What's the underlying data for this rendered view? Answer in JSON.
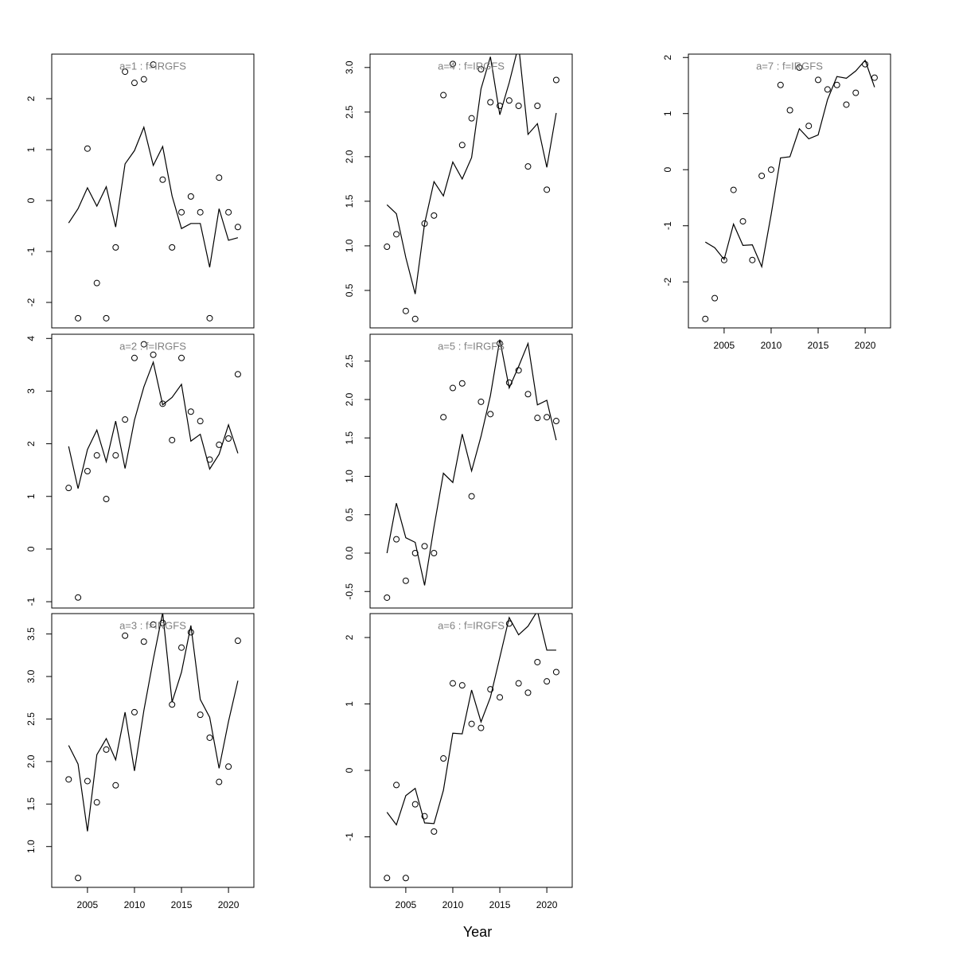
{
  "chart_data": [
    {
      "type": "scatter-line",
      "title": "a=1 : f=IRGFS",
      "x": [
        2003,
        2004,
        2005,
        2006,
        2007,
        2008,
        2009,
        2010,
        2011,
        2012,
        2013,
        2014,
        2015,
        2016,
        2017,
        2018,
        2019,
        2020,
        2021
      ],
      "xlim": [
        2001.2,
        2022.7
      ],
      "ylim": [
        -2.5,
        2.875
      ],
      "yticks": [
        -2,
        -1,
        0,
        1,
        2
      ],
      "series": [
        {
          "style": "points",
          "color": "#000000",
          "values": [
            null,
            -2.31,
            1.02,
            -1.62,
            -2.31,
            -0.92,
            2.53,
            2.31,
            2.38,
            2.67,
            0.41,
            -0.92,
            -0.23,
            0.08,
            -0.23,
            -2.31,
            0.45,
            -0.23,
            -0.52
          ]
        },
        {
          "style": "line",
          "color": "#000000",
          "values": [
            -0.44,
            -0.16,
            0.25,
            -0.11,
            0.27,
            -0.52,
            0.72,
            0.98,
            1.44,
            0.69,
            1.06,
            0.09,
            -0.55,
            -0.45,
            -0.45,
            -1.31,
            -0.16,
            -0.78,
            -0.73
          ]
        }
      ]
    },
    {
      "type": "scatter-line",
      "title": "a=2 : f=IRGFS",
      "x": [
        2003,
        2004,
        2005,
        2006,
        2007,
        2008,
        2009,
        2010,
        2011,
        2012,
        2013,
        2014,
        2015,
        2016,
        2017,
        2018,
        2019,
        2020,
        2021
      ],
      "xlim": [
        2001.2,
        2022.7
      ],
      "ylim": [
        -1.12,
        4.08
      ],
      "yticks": [
        -1,
        0,
        1,
        2,
        3,
        4
      ],
      "series": [
        {
          "style": "points",
          "color": "#000000",
          "values": [
            1.16,
            -0.92,
            1.48,
            1.78,
            0.95,
            1.78,
            2.46,
            3.63,
            3.89,
            3.69,
            2.76,
            2.07,
            3.63,
            2.61,
            2.43,
            1.7,
            1.98,
            2.1,
            3.32
          ]
        },
        {
          "style": "line",
          "color": "#000000",
          "values": [
            1.95,
            1.15,
            1.89,
            2.26,
            1.66,
            2.43,
            1.53,
            2.45,
            3.08,
            3.55,
            2.74,
            2.88,
            3.13,
            2.05,
            2.18,
            1.52,
            1.8,
            2.36,
            1.82
          ]
        }
      ]
    },
    {
      "type": "scatter-line",
      "title": "a=3 : f=IRGFS",
      "x": [
        2003,
        2004,
        2005,
        2006,
        2007,
        2008,
        2009,
        2010,
        2011,
        2012,
        2013,
        2014,
        2015,
        2016,
        2017,
        2018,
        2019,
        2020,
        2021
      ],
      "xlim": [
        2001.2,
        2022.7
      ],
      "ylim": [
        0.52,
        3.74
      ],
      "yticks": [
        {
          "value": 1,
          "label": "1.0"
        },
        1.5,
        {
          "value": 2,
          "label": "2.0"
        },
        2.5,
        {
          "value": 3,
          "label": "3.0"
        },
        3.5
      ],
      "xticks": [
        2005,
        2010,
        2015,
        2020
      ],
      "series": [
        {
          "style": "points",
          "color": "#000000",
          "values": [
            1.79,
            0.63,
            1.77,
            1.52,
            2.14,
            1.72,
            3.48,
            2.58,
            3.41,
            3.61,
            3.63,
            2.67,
            3.34,
            3.52,
            2.55,
            2.28,
            1.76,
            1.94,
            3.42
          ]
        },
        {
          "style": "line",
          "color": "#000000",
          "values": [
            2.19,
            1.97,
            1.18,
            2.08,
            2.27,
            2.02,
            2.58,
            1.89,
            2.6,
            3.2,
            3.75,
            2.7,
            3.05,
            3.6,
            2.73,
            2.52,
            1.92,
            2.47,
            2.95
          ]
        }
      ]
    },
    {
      "type": "scatter-line",
      "title": "a=4 : f=IRGFS",
      "x": [
        2003,
        2004,
        2005,
        2006,
        2007,
        2008,
        2009,
        2010,
        2011,
        2012,
        2013,
        2014,
        2015,
        2016,
        2017,
        2018,
        2019,
        2020,
        2021
      ],
      "xlim": [
        2001.2,
        2022.7
      ],
      "ylim": [
        0.08,
        3.15
      ],
      "yticks": [
        0.5,
        {
          "value": 1,
          "label": "1.0"
        },
        1.5,
        {
          "value": 2,
          "label": "2.0"
        },
        2.5,
        {
          "value": 3,
          "label": "3.0"
        }
      ],
      "series": [
        {
          "style": "points",
          "color": "#000000",
          "values": [
            0.99,
            1.13,
            0.27,
            0.18,
            1.25,
            1.34,
            2.69,
            3.04,
            2.13,
            2.43,
            2.98,
            2.61,
            2.57,
            2.63,
            2.57,
            1.89,
            2.57,
            1.63,
            2.86
          ]
        },
        {
          "style": "line",
          "color": "#000000",
          "values": [
            1.46,
            1.36,
            0.87,
            0.46,
            1.25,
            1.72,
            1.56,
            1.94,
            1.75,
            1.99,
            2.76,
            3.12,
            2.47,
            2.83,
            3.25,
            2.25,
            2.37,
            1.88,
            2.49
          ]
        }
      ]
    },
    {
      "type": "scatter-line",
      "title": "a=5 : f=IRGFS",
      "x": [
        2003,
        2004,
        2005,
        2006,
        2007,
        2008,
        2009,
        2010,
        2011,
        2012,
        2013,
        2014,
        2015,
        2016,
        2017,
        2018,
        2019,
        2020,
        2021
      ],
      "xlim": [
        2001.2,
        2022.7
      ],
      "ylim": [
        -0.715,
        2.85
      ],
      "yticks": [
        -0.5,
        {
          "value": 0,
          "label": "0.0"
        },
        0.5,
        {
          "value": 1,
          "label": "1.0"
        },
        1.5,
        {
          "value": 2,
          "label": "2.0"
        },
        2.5
      ],
      "series": [
        {
          "style": "points",
          "color": "#000000",
          "values": [
            -0.58,
            0.18,
            -0.36,
            0.0,
            0.09,
            0.0,
            1.77,
            2.15,
            2.21,
            0.74,
            1.97,
            1.81,
            2.73,
            2.22,
            2.38,
            2.07,
            1.76,
            1.77,
            1.72
          ]
        },
        {
          "style": "line",
          "color": "#000000",
          "values": [
            0.0,
            0.65,
            0.2,
            0.14,
            -0.42,
            0.34,
            1.04,
            0.92,
            1.55,
            1.07,
            1.52,
            2.05,
            2.78,
            2.15,
            2.43,
            2.73,
            1.93,
            1.99,
            1.47
          ]
        }
      ]
    },
    {
      "type": "scatter-line",
      "title": "a=6 : f=IRGFS",
      "x": [
        2003,
        2004,
        2005,
        2006,
        2007,
        2008,
        2009,
        2010,
        2011,
        2012,
        2013,
        2014,
        2015,
        2016,
        2017,
        2018,
        2019,
        2020,
        2021
      ],
      "xlim": [
        2001.2,
        2022.7
      ],
      "ylim": [
        -1.76,
        2.36
      ],
      "yticks": [
        -1,
        0,
        1,
        2
      ],
      "xticks": [
        2005,
        2010,
        2015,
        2020
      ],
      "series": [
        {
          "style": "points",
          "color": "#000000",
          "values": [
            -1.62,
            -0.22,
            -1.62,
            -0.51,
            -0.69,
            -0.92,
            0.18,
            1.31,
            1.28,
            0.7,
            0.64,
            1.22,
            1.1,
            2.21,
            1.31,
            1.17,
            1.63,
            1.34,
            1.48
          ]
        },
        {
          "style": "line",
          "color": "#000000",
          "values": [
            -0.63,
            -0.82,
            -0.38,
            -0.27,
            -0.79,
            -0.8,
            -0.3,
            0.56,
            0.55,
            1.21,
            0.73,
            1.1,
            1.7,
            2.3,
            2.04,
            2.17,
            2.4,
            1.81,
            1.81
          ]
        }
      ]
    },
    {
      "type": "scatter-line",
      "title": "a=7 : f=IRGFS",
      "x": [
        2003,
        2004,
        2005,
        2006,
        2007,
        2008,
        2009,
        2010,
        2011,
        2012,
        2013,
        2014,
        2015,
        2016,
        2017,
        2018,
        2019,
        2020,
        2021
      ],
      "xlim": [
        2001.2,
        2022.7
      ],
      "ylim": [
        -2.82,
        2.06
      ],
      "yticks": [
        -2,
        -1,
        0,
        1,
        2
      ],
      "xticks": [
        2005,
        2010,
        2015,
        2020
      ],
      "series": [
        {
          "style": "points",
          "color": "#000000",
          "values": [
            -2.66,
            -2.29,
            -1.61,
            -0.36,
            -0.92,
            -1.61,
            -0.11,
            0.0,
            1.51,
            1.06,
            1.82,
            0.78,
            1.6,
            1.43,
            1.51,
            1.16,
            1.37,
            1.88,
            1.64
          ]
        },
        {
          "style": "line",
          "color": "#000000",
          "values": [
            -1.29,
            -1.39,
            -1.6,
            -0.97,
            -1.35,
            -1.34,
            -1.73,
            -0.8,
            0.21,
            0.23,
            0.73,
            0.55,
            0.62,
            1.25,
            1.66,
            1.63,
            1.76,
            1.95,
            1.47
          ]
        }
      ]
    }
  ],
  "xlabel": "Year"
}
